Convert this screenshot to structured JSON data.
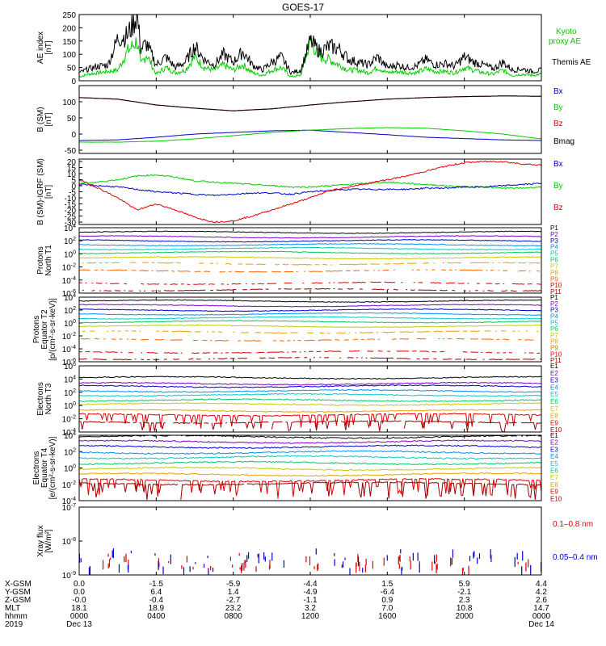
{
  "title": "GOES-17",
  "colors": {
    "black": "#000000",
    "green": "#00cc00",
    "blue": "#0000d0",
    "red": "#e00000",
    "darkred": "#b00000",
    "maroon": "#990000"
  },
  "chart_data": [
    {
      "type": "line",
      "panel": "ae",
      "ylabel": "AE index [nT]",
      "ylim": [
        0,
        250
      ],
      "yticks": [
        "250",
        "200",
        "150",
        "100",
        "50",
        "0"
      ],
      "legend": [
        {
          "name": "Kyoto\nproxy AE",
          "label": "Kyoto",
          "label2": "proxy AE",
          "color": "#00cc00"
        },
        {
          "name": "Themis AE",
          "label": "Themis AE",
          "color": "#000000"
        }
      ],
      "series": [
        {
          "name": "Themis AE",
          "color": "#000000",
          "x": [
            0,
            0.5,
            1,
            1.5,
            2,
            2.5,
            3,
            3.2,
            3.5,
            4,
            4.5,
            5,
            5.5,
            6,
            6.5,
            7,
            7.5,
            8,
            8.5,
            9,
            9.5,
            10,
            10.5,
            11,
            11.5,
            12,
            12.5,
            13,
            13.5,
            14,
            14.5,
            15,
            15.5,
            16,
            16.5,
            17,
            17.5,
            18,
            18.5,
            19,
            19.5,
            20,
            20.5,
            21,
            21.5,
            22,
            22.5,
            23,
            23.5,
            24
          ],
          "y": [
            30,
            45,
            55,
            60,
            160,
            170,
            250,
            120,
            140,
            60,
            90,
            50,
            70,
            130,
            80,
            60,
            100,
            70,
            110,
            60,
            40,
            70,
            90,
            30,
            40,
            150,
            110,
            130,
            120,
            80,
            70,
            60,
            90,
            50,
            60,
            50,
            55,
            80,
            60,
            65,
            55,
            90,
            70,
            60,
            45,
            70,
            40,
            45,
            35,
            40
          ]
        },
        {
          "name": "Kyoto proxy AE",
          "color": "#00cc00",
          "x": [
            0,
            0.5,
            1,
            1.5,
            2,
            2.5,
            3,
            3.2,
            3.5,
            4,
            4.5,
            5,
            5.5,
            6,
            6.5,
            7,
            7.5,
            8,
            8.5,
            9,
            9.5,
            10,
            10.5,
            11,
            11.5,
            12,
            12.5,
            13,
            13.5,
            14,
            14.5,
            15,
            15.5,
            16,
            16.5,
            17,
            17.5,
            18,
            18.5,
            19,
            19.5,
            20,
            20.5,
            21,
            21.5,
            22,
            22.5,
            23,
            23.5,
            24
          ],
          "y": [
            15,
            25,
            30,
            35,
            40,
            110,
            150,
            60,
            100,
            25,
            50,
            30,
            40,
            90,
            50,
            40,
            60,
            40,
            60,
            30,
            20,
            40,
            50,
            15,
            20,
            150,
            90,
            80,
            60,
            40,
            40,
            30,
            50,
            30,
            35,
            30,
            30,
            45,
            35,
            35,
            30,
            50,
            40,
            30,
            25,
            40,
            20,
            25,
            20,
            25
          ]
        }
      ]
    },
    {
      "type": "line",
      "panel": "bsm",
      "ylabel": "B (SM) [nT]",
      "ylim": [
        -60,
        150
      ],
      "yticks": [
        "100",
        "50",
        "0",
        "-50"
      ],
      "legend": [
        {
          "name": "Bx",
          "label": "Bx",
          "color": "#0000d0"
        },
        {
          "name": "By",
          "label": "By",
          "color": "#00cc00"
        },
        {
          "name": "Bz",
          "label": "Bz",
          "color": "#e00000"
        },
        {
          "name": "Bmag",
          "label": "Bmag",
          "color": "#000000"
        }
      ],
      "series": [
        {
          "name": "Bz",
          "color": "#e00000",
          "x": [
            0,
            2,
            4,
            6,
            8,
            10,
            12,
            14,
            16,
            18,
            20,
            22,
            24
          ],
          "y": [
            113,
            108,
            90,
            80,
            72,
            78,
            90,
            100,
            108,
            113,
            116,
            118,
            117
          ]
        },
        {
          "name": "Bmag",
          "color": "#000000",
          "x": [
            0,
            2,
            4,
            6,
            8,
            10,
            12,
            14,
            16,
            18,
            20,
            22,
            24
          ],
          "y": [
            113,
            108,
            90,
            80,
            72,
            78,
            90,
            100,
            108,
            113,
            116,
            118,
            117
          ]
        },
        {
          "name": "Bx",
          "color": "#0000d0",
          "x": [
            0,
            2,
            4,
            6,
            8,
            10,
            12,
            14,
            16,
            18,
            20,
            22,
            24
          ],
          "y": [
            -20,
            -18,
            -10,
            0,
            5,
            10,
            12,
            5,
            -2,
            -10,
            -14,
            -18,
            -20
          ]
        },
        {
          "name": "By",
          "color": "#00cc00",
          "x": [
            0,
            2,
            4,
            6,
            8,
            10,
            12,
            14,
            16,
            18,
            20,
            22,
            24
          ],
          "y": [
            -25,
            -25,
            -22,
            -15,
            -5,
            5,
            12,
            17,
            20,
            18,
            10,
            0,
            -15
          ]
        }
      ]
    },
    {
      "type": "line",
      "panel": "bdiff",
      "ylabel": "B (SM)-IGRF (SM) [nT]",
      "ylim": [
        -32,
        22
      ],
      "yticks": [
        "20",
        "15",
        "10",
        "5",
        "0",
        "-5",
        "-10",
        "-15",
        "-20",
        "-25",
        "-30"
      ],
      "legend": [
        {
          "name": "Bx",
          "label": "Bx",
          "color": "#0000d0"
        },
        {
          "name": "By",
          "label": "By",
          "color": "#00cc00"
        },
        {
          "name": "Bz",
          "label": "Bz",
          "color": "#e00000"
        }
      ],
      "series": [
        {
          "name": "By",
          "color": "#00cc00",
          "x": [
            0,
            1,
            2,
            3,
            4,
            5,
            6,
            7,
            8,
            9,
            10,
            11,
            12,
            13,
            14,
            15,
            16,
            17,
            18,
            19,
            20,
            21,
            22,
            23,
            24
          ],
          "y": [
            2,
            3,
            5,
            8,
            9,
            7,
            4,
            3,
            2,
            1,
            0,
            -1,
            -1,
            0,
            1,
            2,
            3,
            2,
            1,
            0,
            -1,
            -1,
            -2,
            -2,
            -1
          ]
        },
        {
          "name": "Bx",
          "color": "#0000d0",
          "x": [
            0,
            1,
            2,
            3,
            4,
            5,
            6,
            7,
            8,
            9,
            10,
            11,
            12,
            13,
            14,
            15,
            16,
            17,
            18,
            19,
            20,
            21,
            22,
            23,
            24
          ],
          "y": [
            1,
            0,
            -1,
            -3,
            -5,
            -6,
            -7,
            -8,
            -7,
            -6,
            -6,
            -7,
            -5,
            -4,
            -3,
            -3,
            -3,
            -3,
            -2,
            -2,
            -1,
            -1,
            0,
            1,
            2
          ]
        },
        {
          "name": "Bz",
          "color": "#e00000",
          "x": [
            0,
            1,
            2,
            3,
            4,
            5,
            6,
            7,
            8,
            9,
            10,
            11,
            12,
            13,
            14,
            15,
            16,
            17,
            18,
            19,
            20,
            21,
            22,
            23,
            24
          ],
          "y": [
            5,
            -2,
            -10,
            -20,
            -15,
            -20,
            -26,
            -30,
            -29,
            -25,
            -20,
            -15,
            -10,
            -4,
            -1,
            2,
            5,
            8,
            12,
            16,
            19,
            20,
            20,
            18,
            17
          ]
        }
      ]
    },
    {
      "type": "line",
      "panel": "protons_north",
      "ylabel": "Protons North T1",
      "scale": "log",
      "ylim_exp": [
        -6,
        4
      ],
      "yticks": [
        "10^4",
        "10^2",
        "10^0",
        "10^-2",
        "10^-4",
        "10^-6"
      ],
      "legend": [
        {
          "name": "P1",
          "label": "P1",
          "color": "#000000"
        },
        {
          "name": "P2",
          "label": "P2",
          "color": "#7b00c8"
        },
        {
          "name": "P3",
          "label": "P3",
          "color": "#0000d0"
        },
        {
          "name": "P4",
          "label": "P4",
          "color": "#0090ff"
        },
        {
          "name": "P5",
          "label": "P5",
          "color": "#00c8c8"
        },
        {
          "name": "P6",
          "label": "P6",
          "color": "#00c864"
        },
        {
          "name": "P7",
          "label": "P7",
          "color": "#c8c800"
        },
        {
          "name": "P8",
          "label": "P8",
          "color": "#f0a000"
        },
        {
          "name": "P9",
          "label": "P9",
          "color": "#ff6400"
        },
        {
          "name": "P10",
          "label": "P10",
          "color": "#e00000"
        },
        {
          "name": "P11",
          "label": "P11",
          "color": "#990000"
        }
      ],
      "levels_exp": [
        3.3,
        2.6,
        2.0,
        1.4,
        0.8,
        0.2,
        -0.6,
        -1.5,
        -2.6,
        -4.5,
        -5.5
      ]
    },
    {
      "type": "line",
      "panel": "protons_equator",
      "ylabel": "Protons Equator T2",
      "ylabel2": "[p/(cm²-s-sr-keV)]",
      "scale": "log",
      "ylim_exp": [
        -6,
        4
      ],
      "yticks": [
        "10^4",
        "10^2",
        "10^0",
        "10^-2",
        "10^-4",
        "10^-6"
      ],
      "legend": [
        {
          "name": "P1",
          "label": "P1",
          "color": "#000000"
        },
        {
          "name": "P2",
          "label": "P2",
          "color": "#7b00c8"
        },
        {
          "name": "P3",
          "label": "P3",
          "color": "#0000d0"
        },
        {
          "name": "P4",
          "label": "P4",
          "color": "#0090ff"
        },
        {
          "name": "P5",
          "label": "P5",
          "color": "#00c8c8"
        },
        {
          "name": "P6",
          "label": "P6",
          "color": "#00c864"
        },
        {
          "name": "P7",
          "label": "P7",
          "color": "#c8c800"
        },
        {
          "name": "P8",
          "label": "P8",
          "color": "#f0a000"
        },
        {
          "name": "P9",
          "label": "P9",
          "color": "#ff6400"
        },
        {
          "name": "P10",
          "label": "P10",
          "color": "#e00000"
        },
        {
          "name": "P11",
          "label": "P11",
          "color": "#990000"
        }
      ],
      "levels_exp": [
        3.4,
        2.7,
        2.0,
        1.4,
        0.8,
        0.2,
        -0.5,
        -1.4,
        -2.6,
        -4.5,
        -5.5
      ]
    },
    {
      "type": "line",
      "panel": "electrons_north",
      "ylabel": "Electrons North T3",
      "scale": "log",
      "ylim_exp": [
        -4,
        6
      ],
      "yticks": [
        "10^6",
        "10^4",
        "10^2",
        "10^0",
        "10^-2",
        "10^-4"
      ],
      "legend": [
        {
          "name": "E1",
          "label": "E1",
          "color": "#000000"
        },
        {
          "name": "E2",
          "label": "E2",
          "color": "#7b00c8"
        },
        {
          "name": "E3",
          "label": "E3",
          "color": "#0000d0"
        },
        {
          "name": "E4",
          "label": "E4",
          "color": "#0090ff"
        },
        {
          "name": "E5",
          "label": "E5",
          "color": "#00c8c8"
        },
        {
          "name": "E6",
          "label": "E6",
          "color": "#00c864"
        },
        {
          "name": "E7",
          "label": "E7",
          "color": "#c8c800"
        },
        {
          "name": "E8",
          "label": "E8",
          "color": "#f0a000"
        },
        {
          "name": "E9",
          "label": "E9",
          "color": "#e00000"
        },
        {
          "name": "E10",
          "label": "E10",
          "color": "#990000"
        }
      ],
      "levels_exp": [
        4.2,
        3.3,
        2.9,
        2.2,
        1.6,
        0.8,
        0.2,
        -0.8,
        -1.4,
        -2.5
      ]
    },
    {
      "type": "line",
      "panel": "electrons_equator",
      "ylabel": "Electrons Equator T4",
      "ylabel2": "[e/(cm²-s-sr-keV)]",
      "scale": "log",
      "ylim_exp": [
        -4,
        4
      ],
      "yticks": [
        "10^4",
        "10^2",
        "10^0",
        "10^-2",
        "10^-4"
      ],
      "legend": [
        {
          "name": "E1",
          "label": "E1",
          "color": "#000000"
        },
        {
          "name": "E2",
          "label": "E2",
          "color": "#7b00c8"
        },
        {
          "name": "E3",
          "label": "E3",
          "color": "#0000d0"
        },
        {
          "name": "E4",
          "label": "E4",
          "color": "#0090ff"
        },
        {
          "name": "E5",
          "label": "E5",
          "color": "#00c8c8"
        },
        {
          "name": "E6",
          "label": "E6",
          "color": "#00c864"
        },
        {
          "name": "E7",
          "label": "E7",
          "color": "#c8c800"
        },
        {
          "name": "E8",
          "label": "E8",
          "color": "#f0a000"
        },
        {
          "name": "E9",
          "label": "E9",
          "color": "#e00000"
        },
        {
          "name": "E10",
          "label": "E10",
          "color": "#990000"
        }
      ],
      "levels_exp": [
        3.8,
        3.2,
        2.6,
        1.9,
        1.3,
        0.6,
        -0.1,
        -0.8,
        -1.5,
        -1.9
      ]
    },
    {
      "type": "scatter",
      "panel": "xray",
      "ylabel": "Xray flux [W/m²]",
      "scale": "log",
      "ylim_exp": [
        -9,
        -7
      ],
      "yticks": [
        "10^-7",
        "10^-8",
        "10^-9"
      ],
      "legend": [
        {
          "name": "0.1-0.8 nm",
          "label": "0.1–0.8 nm",
          "color": "#e00000"
        },
        {
          "name": "0.05-0.4 nm",
          "label": "0.05–0.4 nm",
          "color": "#0000d0"
        }
      ]
    }
  ],
  "x_axis": {
    "xlim": [
      0,
      24
    ],
    "ticks": [
      0,
      4,
      8,
      12,
      16,
      20,
      24
    ],
    "row_labels": [
      "X-GSM",
      "Y-GSM",
      "Z-GSM",
      "MLT",
      "hhmm",
      "2019"
    ],
    "columns": [
      {
        "xgsm": "0.0",
        "ygsm": "0.0",
        "zgsm": "-0.0",
        "mlt": "18.1",
        "hhmm": "0000",
        "date": "Dec 13"
      },
      {
        "xgsm": "-1.5",
        "ygsm": "6.4",
        "zgsm": "-0.4",
        "mlt": "18.9",
        "hhmm": "0400",
        "date": ""
      },
      {
        "xgsm": "-5.9",
        "ygsm": "1.4",
        "zgsm": "-2.7",
        "mlt": "23.2",
        "hhmm": "0800",
        "date": ""
      },
      {
        "xgsm": "-4.4",
        "ygsm": "-4.9",
        "zgsm": "-1.1",
        "mlt": "3.2",
        "hhmm": "1200",
        "date": ""
      },
      {
        "xgsm": "1.5",
        "ygsm": "-6.4",
        "zgsm": "0.9",
        "mlt": "7.0",
        "hhmm": "1600",
        "date": ""
      },
      {
        "xgsm": "5.9",
        "ygsm": "-2.1",
        "zgsm": "2.3",
        "mlt": "10.8",
        "hhmm": "2000",
        "date": ""
      },
      {
        "xgsm": "4.4",
        "ygsm": "4.2",
        "zgsm": "2.6",
        "mlt": "14.7",
        "hhmm": "0000",
        "date": "Dec 14"
      }
    ]
  }
}
